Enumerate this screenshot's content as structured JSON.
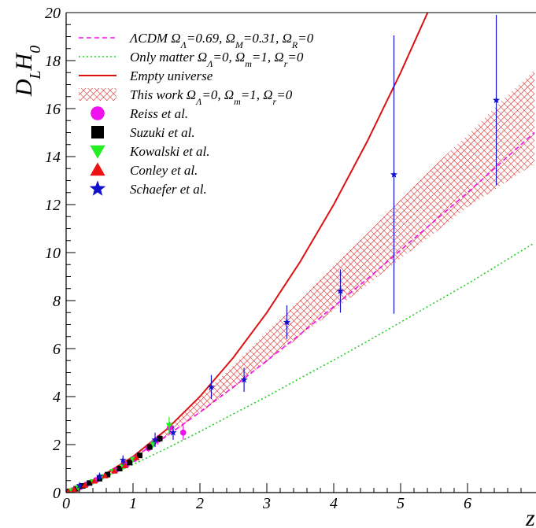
{
  "chart_data": {
    "type": "scatter",
    "title": "",
    "xlabel": "z",
    "ylabel": "D_L H_0",
    "ylabel_parts": {
      "main": "D",
      "sub1": "L",
      "mid": "H",
      "sub2": "0"
    },
    "xlim": [
      0,
      7
    ],
    "ylim": [
      0,
      20
    ],
    "xticks": [
      0,
      1,
      2,
      3,
      4,
      5,
      6
    ],
    "yticks": [
      0,
      2,
      4,
      6,
      8,
      10,
      12,
      14,
      16,
      18,
      20
    ],
    "grid": false,
    "legend_position": "top-left",
    "curves": [
      {
        "name": "ΛCDM  Ω_Λ=0.69, Ω_M=0.31, Ω_R=0",
        "label_parts": {
          "a": "ΛCDM  Ω",
          "b": "Λ",
          "c": "=0.69, Ω",
          "d": "M",
          "e": "=0.31, Ω",
          "f": "R",
          "g": "=0"
        },
        "style": "dashed",
        "color": "#ee11ee",
        "x": [
          0,
          0.5,
          1,
          1.5,
          2,
          2.5,
          3,
          3.5,
          4,
          4.5,
          5,
          5.5,
          6,
          6.5,
          7
        ],
        "y": [
          0,
          0.6,
          1.45,
          2.35,
          3.35,
          4.4,
          5.5,
          6.6,
          7.75,
          8.9,
          10.1,
          11.3,
          12.5,
          13.75,
          15.0
        ]
      },
      {
        "name": "Only matter  Ω_Λ=0, Ω_m=1, Ω_r=0",
        "label_parts": {
          "a": "Only matter  Ω",
          "b": "Λ",
          "c": "=0, Ω",
          "d": "m",
          "e": "=1, Ω",
          "f": "r",
          "g": "=0"
        },
        "style": "dotted",
        "color": "#22cc22",
        "x": [
          0,
          0.5,
          1,
          1.5,
          2,
          2.5,
          3,
          3.5,
          4,
          4.5,
          5,
          5.5,
          6,
          6.5,
          7
        ],
        "y": [
          0,
          0.55,
          1.17,
          1.84,
          2.54,
          3.28,
          4.0,
          4.77,
          5.52,
          6.3,
          7.1,
          7.9,
          8.7,
          9.55,
          10.4
        ]
      },
      {
        "name": "Empty universe",
        "label_parts": {
          "a": "Empty universe"
        },
        "style": "solid",
        "color": "#dd1111",
        "x": [
          0,
          0.5,
          1,
          1.5,
          2,
          2.5,
          3,
          3.5,
          4,
          4.5,
          5,
          5.42
        ],
        "y": [
          0,
          0.625,
          1.5,
          2.625,
          4.0,
          5.625,
          7.5,
          9.625,
          12.0,
          14.625,
          17.5,
          20.1
        ]
      }
    ],
    "band": {
      "name": "This work  Ω_Λ=0, Ω_m=1, Ω_r=0",
      "label_parts": {
        "a": "This work  Ω",
        "b": "Λ",
        "c": "=0, Ω",
        "d": "m",
        "e": "=1, Ω",
        "f": "r",
        "g": "=0"
      },
      "color": "#dd1111",
      "x": [
        0,
        0.5,
        1,
        1.5,
        2,
        2.5,
        3,
        3.5,
        4,
        4.5,
        5,
        5.5,
        6,
        6.5,
        7
      ],
      "upper": [
        0,
        0.65,
        1.55,
        2.6,
        3.95,
        5.3,
        6.7,
        8.05,
        9.45,
        10.8,
        12.2,
        13.6,
        14.9,
        16.3,
        17.6
      ],
      "lower": [
        0,
        0.6,
        1.4,
        2.3,
        3.3,
        4.35,
        5.45,
        6.5,
        7.6,
        8.65,
        9.75,
        10.8,
        11.9,
        12.8,
        13.7
      ]
    },
    "series": [
      {
        "name": "Reiss et al.",
        "label_parts": {
          "a": "Reiss et al."
        },
        "marker": "circle",
        "color": "#ee11ee",
        "points": [
          {
            "x": 0.02,
            "y": 0.02,
            "err": 0.02
          },
          {
            "x": 0.1,
            "y": 0.1,
            "err": 0.02
          },
          {
            "x": 0.21,
            "y": 0.23,
            "err": 0.03
          },
          {
            "x": 0.3,
            "y": 0.33,
            "err": 0.04
          },
          {
            "x": 0.45,
            "y": 0.52,
            "err": 0.05
          },
          {
            "x": 0.6,
            "y": 0.72,
            "err": 0.07
          },
          {
            "x": 0.74,
            "y": 0.92,
            "err": 0.08
          },
          {
            "x": 0.9,
            "y": 1.15,
            "err": 0.1
          },
          {
            "x": 1.02,
            "y": 1.4,
            "err": 0.12
          },
          {
            "x": 1.23,
            "y": 1.85,
            "err": 0.15
          },
          {
            "x": 1.3,
            "y": 2.05,
            "err": 0.15
          },
          {
            "x": 1.37,
            "y": 2.2,
            "err": 0.2
          },
          {
            "x": 1.55,
            "y": 2.7,
            "err": 0.25
          },
          {
            "x": 1.75,
            "y": 2.5,
            "err": 0.3
          }
        ]
      },
      {
        "name": "Suzuki et al.",
        "label_parts": {
          "a": "Suzuki et al."
        },
        "marker": "square",
        "color": "#000000",
        "points": [
          {
            "x": 0.05,
            "y": 0.05,
            "err": 0.01
          },
          {
            "x": 0.15,
            "y": 0.16,
            "err": 0.02
          },
          {
            "x": 0.25,
            "y": 0.28,
            "err": 0.03
          },
          {
            "x": 0.35,
            "y": 0.4,
            "err": 0.03
          },
          {
            "x": 0.5,
            "y": 0.58,
            "err": 0.04
          },
          {
            "x": 0.62,
            "y": 0.75,
            "err": 0.05
          },
          {
            "x": 0.8,
            "y": 1.0,
            "err": 0.06
          },
          {
            "x": 0.95,
            "y": 1.25,
            "err": 0.08
          },
          {
            "x": 1.1,
            "y": 1.55,
            "err": 0.1
          },
          {
            "x": 1.25,
            "y": 1.9,
            "err": 0.12
          },
          {
            "x": 1.4,
            "y": 2.25,
            "err": 0.15
          }
        ]
      },
      {
        "name": "Kowalski et al.",
        "label_parts": {
          "a": "Kowalski et al."
        },
        "marker": "triangle-down",
        "color": "#22ee22",
        "points": [
          {
            "x": 0.08,
            "y": 0.08,
            "err": 0.01
          },
          {
            "x": 0.18,
            "y": 0.2,
            "err": 0.02
          },
          {
            "x": 0.4,
            "y": 0.46,
            "err": 0.03
          },
          {
            "x": 0.55,
            "y": 0.66,
            "err": 0.04
          },
          {
            "x": 0.7,
            "y": 0.88,
            "err": 0.06
          },
          {
            "x": 0.85,
            "y": 1.08,
            "err": 0.08
          },
          {
            "x": 1.0,
            "y": 1.38,
            "err": 0.1
          },
          {
            "x": 1.3,
            "y": 2.02,
            "err": 0.15
          },
          {
            "x": 1.54,
            "y": 2.8,
            "err": 0.35
          }
        ]
      },
      {
        "name": "Conley et al.",
        "label_parts": {
          "a": "Conley et al."
        },
        "marker": "triangle-up",
        "color": "#ee1111",
        "points": [
          {
            "x": 0.03,
            "y": 0.03,
            "err": 0.01
          },
          {
            "x": 0.12,
            "y": 0.13,
            "err": 0.02
          },
          {
            "x": 0.28,
            "y": 0.31,
            "err": 0.03
          },
          {
            "x": 0.42,
            "y": 0.48,
            "err": 0.04
          },
          {
            "x": 0.58,
            "y": 0.7,
            "err": 0.05
          },
          {
            "x": 0.72,
            "y": 0.9,
            "err": 0.06
          },
          {
            "x": 0.88,
            "y": 1.12,
            "err": 0.08
          },
          {
            "x": 1.05,
            "y": 1.45,
            "err": 0.1
          }
        ]
      },
      {
        "name": "Schaefer et al.",
        "label_parts": {
          "a": "Schaefer et al."
        },
        "marker": "star",
        "color": "#1111cc",
        "points": [
          {
            "x": 0.2,
            "y": 0.3,
            "err": 0.1
          },
          {
            "x": 0.5,
            "y": 0.68,
            "err": 0.15
          },
          {
            "x": 0.85,
            "y": 1.35,
            "err": 0.2
          },
          {
            "x": 1.33,
            "y": 2.2,
            "err": 0.3
          },
          {
            "x": 1.6,
            "y": 2.5,
            "err": 0.3
          },
          {
            "x": 2.17,
            "y": 4.4,
            "err": 0.5
          },
          {
            "x": 2.66,
            "y": 4.7,
            "err": 0.5
          },
          {
            "x": 3.3,
            "y": 7.1,
            "err": 0.7
          },
          {
            "x": 4.1,
            "y": 8.4,
            "err": 0.9
          },
          {
            "x": 4.9,
            "y": 13.25,
            "err": 5.8
          },
          {
            "x": 6.43,
            "y": 16.35,
            "err": 3.55
          }
        ]
      }
    ]
  }
}
